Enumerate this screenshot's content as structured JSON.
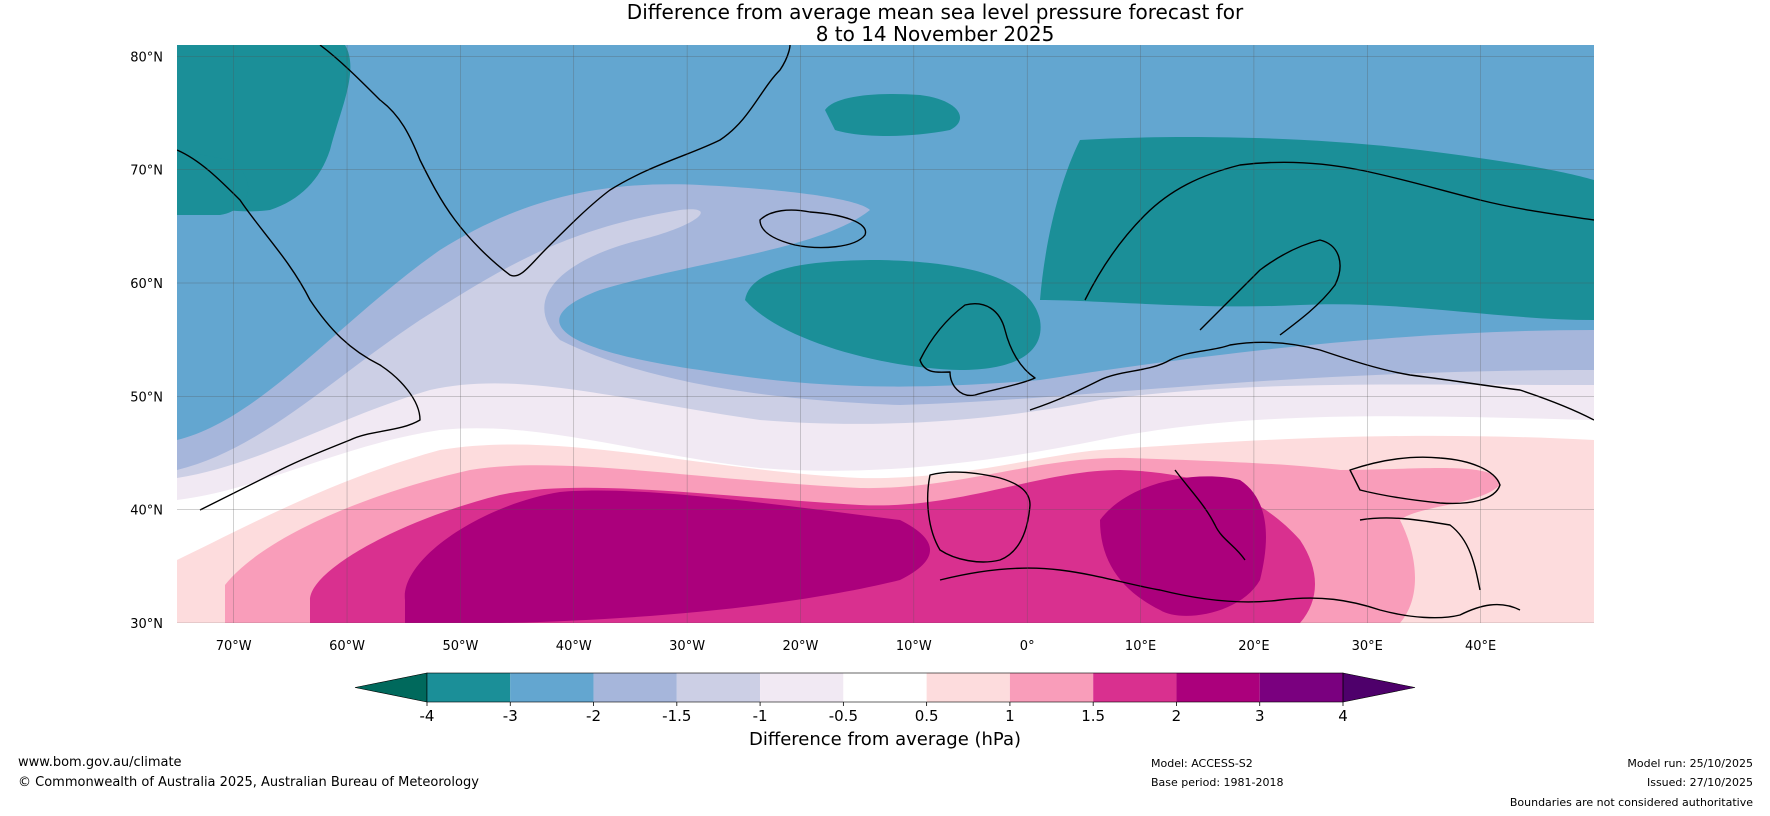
{
  "title": {
    "line1": "Difference from average mean sea level pressure forecast for",
    "line2": "8 to 14 November 2025"
  },
  "map": {
    "lat_ticks": [
      "80°N",
      "70°N",
      "60°N",
      "50°N",
      "40°N",
      "30°N"
    ],
    "lon_ticks": [
      "70°W",
      "60°W",
      "50°W",
      "40°W",
      "30°W",
      "20°W",
      "10°W",
      "0°",
      "10°E",
      "20°E",
      "30°E",
      "40°E"
    ],
    "lat_values": [
      80,
      70,
      60,
      50,
      40,
      30
    ],
    "lon_values": [
      -70,
      -60,
      -50,
      -40,
      -30,
      -20,
      -10,
      0,
      10,
      20,
      30,
      40
    ],
    "lon_range": [
      -75,
      50
    ],
    "lat_range": [
      30,
      81
    ]
  },
  "colorbar": {
    "title": "Difference from average (hPa)",
    "tick_labels": [
      "-4",
      "-3",
      "-2",
      "-1.5",
      "-1",
      "-0.5",
      "0.5",
      "1",
      "1.5",
      "2",
      "3",
      "4"
    ],
    "colors": [
      "#00695c",
      "#1b8f98",
      "#63a6d0",
      "#a6b6db",
      "#cccfe5",
      "#f1e9f3",
      "#ffffff",
      "#fddcdd",
      "#f99dba",
      "#d9308f",
      "#ab007c",
      "#7a007f",
      "#4e006b"
    ]
  },
  "footer": {
    "website": "www.bom.gov.au/climate",
    "copyright": "© Commonwealth of Australia 2025, Australian Bureau of Meteorology",
    "model": "Model: ACCESS-S2",
    "base_period": "Base period: 1981-2018",
    "model_run": "Model run: 25/10/2025",
    "issued": "Issued: 27/10/2025",
    "disclaimer": "Boundaries are not considered authoritative"
  }
}
